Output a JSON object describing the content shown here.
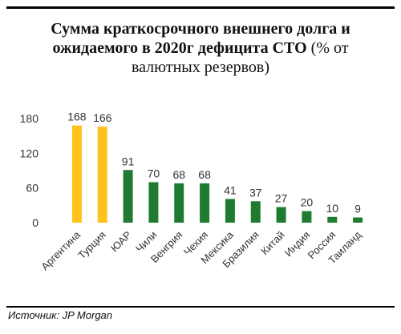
{
  "header": {
    "title_line1": "Сумма краткосрочного внешнего долга и",
    "title_line2": "ожидаемого в 2020г дефицита СТО",
    "title_line2_suffix": "(% от",
    "title_line3": "валютных резервов)"
  },
  "footer": {
    "source_label": "Источник:",
    "source_value": "JP Morgan"
  },
  "colors": {
    "highlight": "#FFC21A",
    "default": "#1E7B30"
  },
  "chart_data": {
    "type": "bar",
    "title": "Сумма краткосрочного внешнего долга и ожидаемого в 2020г дефицита СТО (% от валютных резервов)",
    "categories": [
      "Аргентина",
      "Турция",
      "ЮАР",
      "Чили",
      "Венгрия",
      "Чехия",
      "Мексика",
      "Бразилия",
      "Китай",
      "Индия",
      "Россия",
      "Таиланд"
    ],
    "values": [
      168,
      166,
      91,
      70,
      68,
      68,
      41,
      37,
      27,
      20,
      10,
      9
    ],
    "highlighted": [
      true,
      true,
      false,
      false,
      false,
      false,
      false,
      false,
      false,
      false,
      false,
      false
    ],
    "ylim": [
      0,
      180
    ],
    "yticks": [
      0,
      60,
      120,
      180
    ],
    "grid": false,
    "legend": "none"
  }
}
